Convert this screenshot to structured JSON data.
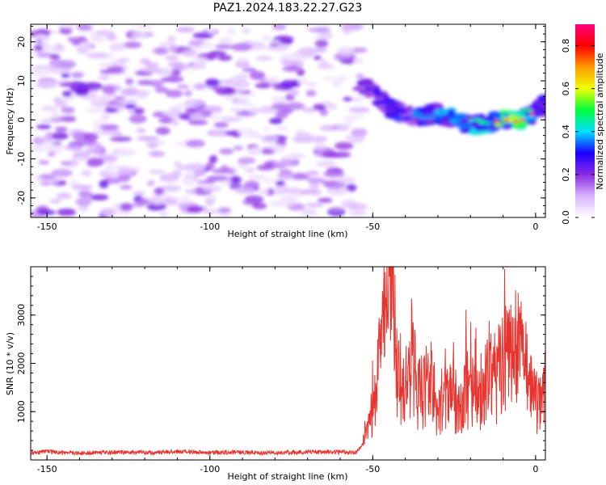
{
  "chart_data": [
    {
      "type": "heatmap",
      "title": "PAZ1.2024.183.22.27.G23",
      "xlabel": "Height of straight line (km)",
      "ylabel": "Frequency (Hz)",
      "xlim": [
        -155,
        3
      ],
      "ylim": [
        -25,
        24.5
      ],
      "xticks": [
        -150,
        -100,
        -50,
        0
      ],
      "yticks": [
        -20,
        -10,
        0,
        10,
        20
      ],
      "x_tick_labels": [
        "-150",
        "-100",
        "-50",
        "0"
      ],
      "y_tick_labels": [
        "-20",
        "-10",
        "0",
        "10",
        "20"
      ],
      "noise_region": {
        "x_range": [
          -153,
          -54
        ],
        "y_range": [
          -25,
          24
        ],
        "amplitude_range": [
          0.0,
          0.2
        ]
      },
      "signal_ridge": {
        "x": [
          -54,
          -50,
          -45,
          -40,
          -35,
          -30,
          -25,
          -20,
          -15,
          -10,
          -5,
          0,
          3
        ],
        "frequency": [
          10,
          7,
          3,
          1.5,
          1,
          1.5,
          0.5,
          -1.5,
          -1,
          0,
          -0.5,
          2,
          4
        ],
        "amplitude": [
          0.2,
          0.25,
          0.3,
          0.3,
          0.35,
          0.35,
          0.35,
          0.4,
          0.45,
          0.55,
          0.6,
          0.3,
          0.35
        ]
      },
      "colorbar": {
        "label": "Normalized spectral amplitude",
        "range": [
          0.0,
          0.9
        ],
        "ticks": [
          0.0,
          0.2,
          0.4,
          0.6,
          0.8
        ],
        "tick_labels": [
          "0.0",
          "0.2",
          "0.4",
          "0.6",
          "0.8"
        ],
        "colors": [
          "#ffffff",
          "#d9b3ff",
          "#8a2be2",
          "#1a00ff",
          "#00e0ff",
          "#00ff3c",
          "#f0ff00",
          "#ff9a00",
          "#ff0000",
          "#ff0080"
        ]
      }
    },
    {
      "type": "line",
      "xlabel": "Height of straight line (km)",
      "ylabel": "SNR (10 * v/v)",
      "xlim": [
        -155,
        3
      ],
      "ylim": [
        0,
        4000
      ],
      "xticks": [
        -150,
        -100,
        -50,
        0
      ],
      "yticks": [
        1000,
        2000,
        3000
      ],
      "x_tick_labels": [
        "-150",
        "-100",
        "-50",
        "0"
      ],
      "y_tick_labels": [
        "1000",
        "2000",
        "3000"
      ],
      "color": "#e8332e",
      "series": [
        {
          "x": [
            -155,
            -150,
            -140,
            -130,
            -120,
            -110,
            -100,
            -90,
            -80,
            -70,
            -60,
            -55,
            -53,
            -51,
            -49,
            -47,
            -45,
            -44,
            -43,
            -42,
            -40,
            -38,
            -36,
            -34,
            -32,
            -30,
            -28,
            -26,
            -24,
            -22,
            -20,
            -18,
            -16,
            -14,
            -12,
            -10,
            -8,
            -6,
            -4,
            -2,
            0,
            2,
            3
          ],
          "y": [
            150,
            170,
            140,
            160,
            150,
            170,
            150,
            160,
            140,
            170,
            160,
            150,
            350,
            700,
            1500,
            2800,
            3900,
            3700,
            2600,
            1800,
            1700,
            2200,
            1400,
            1600,
            1800,
            900,
            1300,
            1700,
            1100,
            1500,
            1600,
            1300,
            1700,
            2000,
            1800,
            2100,
            2200,
            2500,
            2300,
            1600,
            1200,
            1500,
            1700
          ]
        }
      ]
    }
  ]
}
